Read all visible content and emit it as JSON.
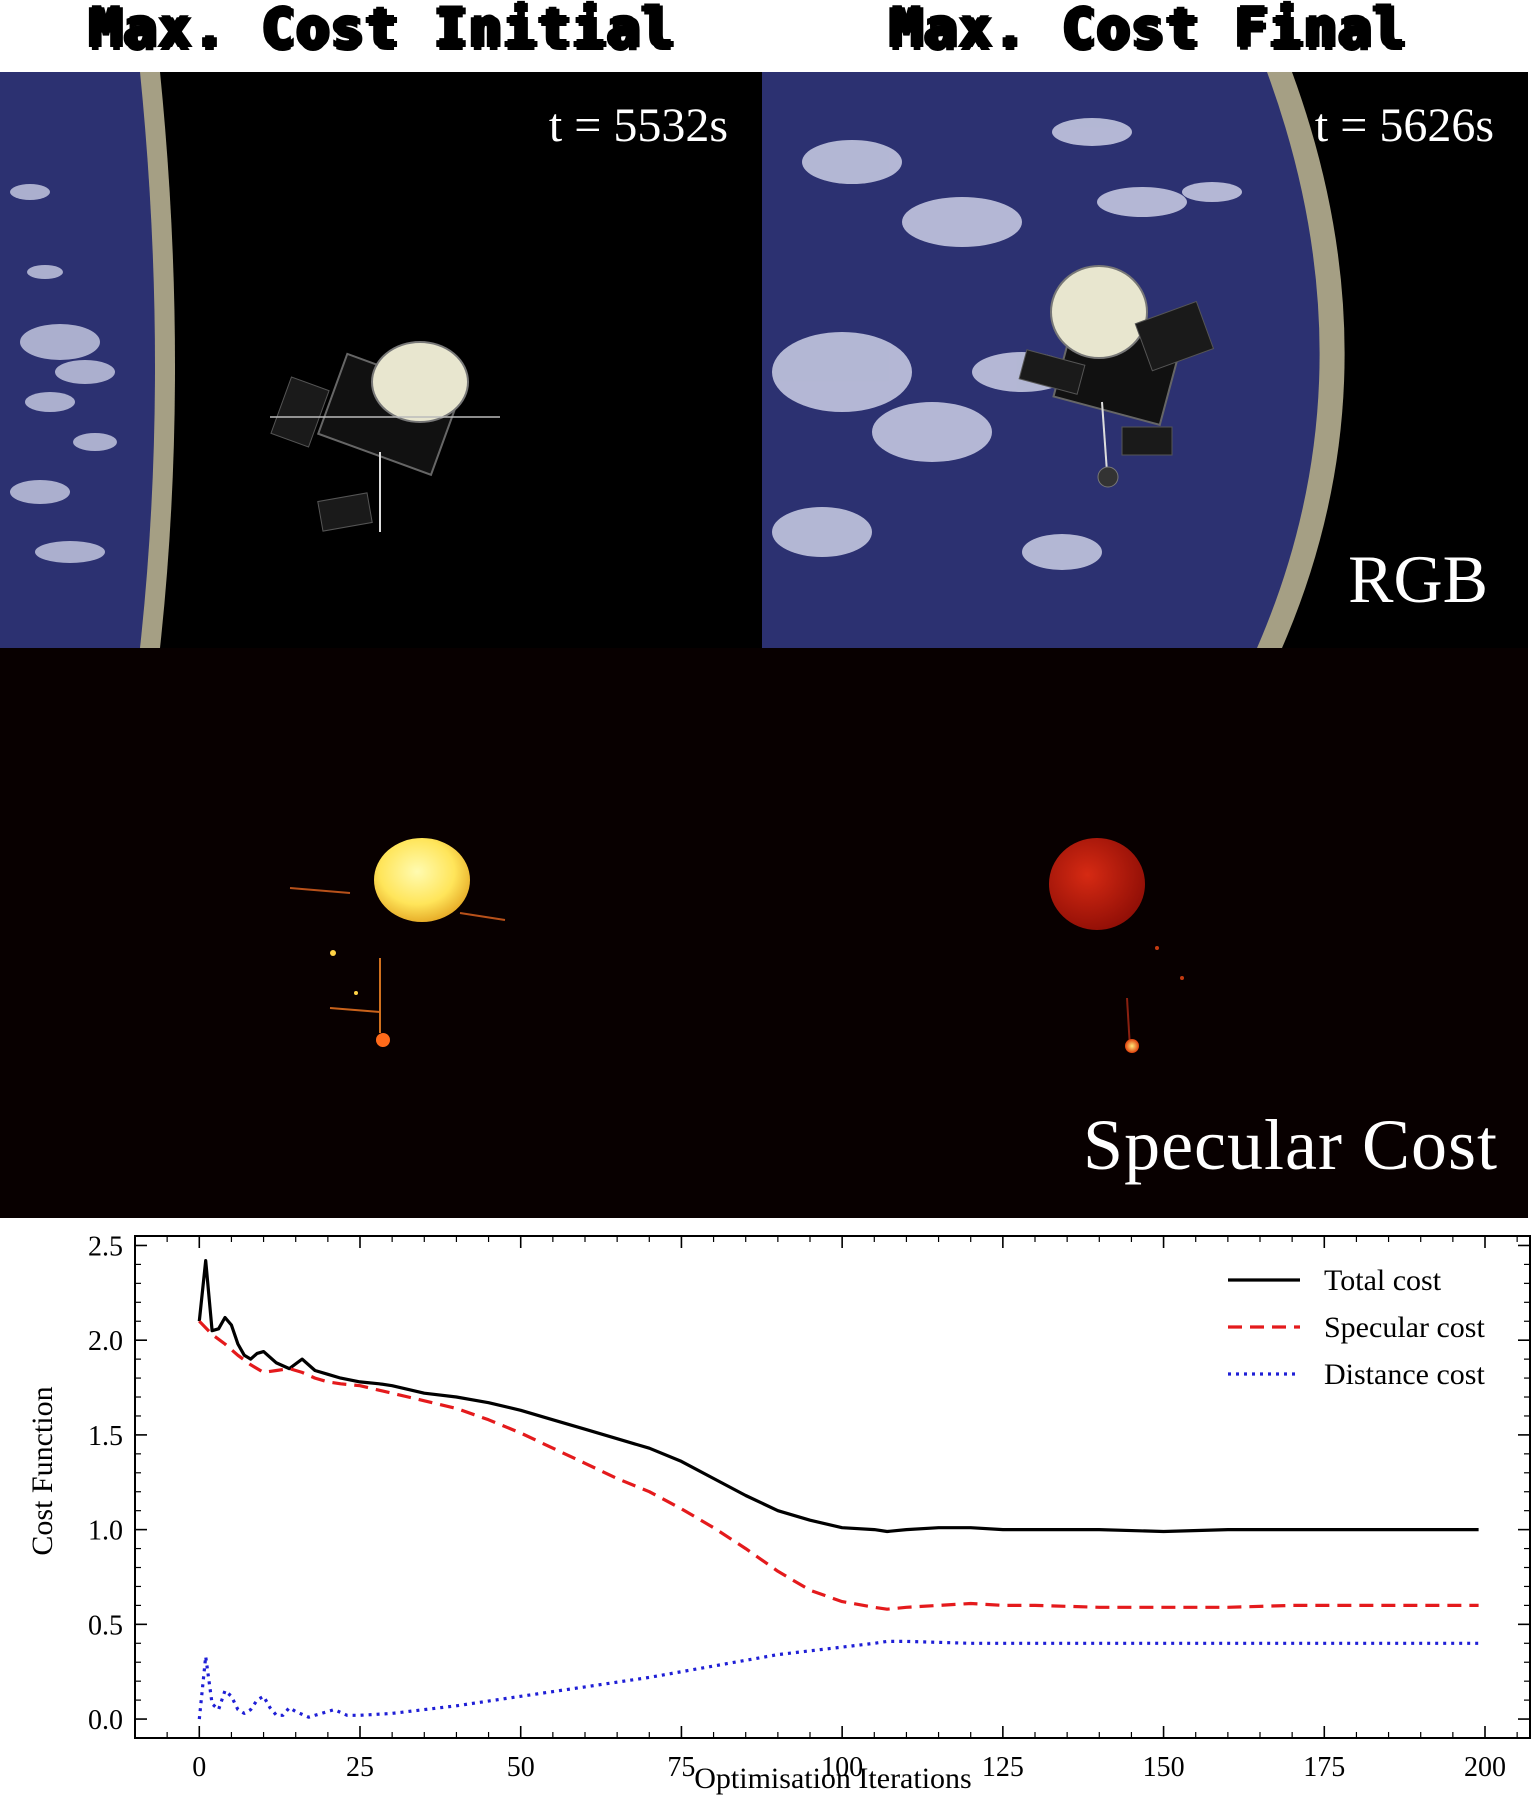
{
  "figure": {
    "col_titles": [
      "Max. Cost Initial",
      "Max. Cost Final"
    ],
    "panels": {
      "initial_time": "t = 5532s",
      "final_time": "t = 5626s",
      "rgb_label": "RGB",
      "specular_label": "Specular Cost"
    }
  },
  "colors": {
    "total": "#000000",
    "specular": "#e41a1c",
    "distance": "#1f1fd6",
    "space": "#000000",
    "earth": "#2a2f6e",
    "atmosphere": "#9c977e",
    "heat_hot": "#ffec5a",
    "heat_mid": "#c2180c"
  },
  "chart_data": {
    "type": "line",
    "xlabel": "Optimisation Iterations",
    "ylabel": "Cost Function",
    "xlim": [
      -10,
      207
    ],
    "ylim": [
      -0.1,
      2.55
    ],
    "xticks": [
      0,
      25,
      50,
      75,
      100,
      125,
      150,
      175,
      200
    ],
    "yticks": [
      0.0,
      0.5,
      1.0,
      1.5,
      2.0,
      2.5
    ],
    "xtick_labels": [
      "0",
      "25",
      "50",
      "75",
      "100",
      "125",
      "150",
      "175",
      "200"
    ],
    "ytick_labels": [
      "0.0",
      "0.5",
      "1.0",
      "1.5",
      "2.0",
      "2.5"
    ],
    "legend_position": "top-right",
    "series": [
      {
        "name": "Total cost",
        "style": "solid",
        "x": [
          0,
          1,
          2,
          3,
          4,
          5,
          6,
          7,
          8,
          9,
          10,
          12,
          14,
          16,
          18,
          20,
          22,
          25,
          28,
          30,
          35,
          40,
          45,
          50,
          55,
          60,
          65,
          70,
          75,
          80,
          85,
          90,
          95,
          100,
          105,
          107,
          110,
          115,
          120,
          125,
          130,
          140,
          150,
          160,
          170,
          180,
          190,
          199
        ],
        "y": [
          2.1,
          2.42,
          2.05,
          2.06,
          2.12,
          2.08,
          1.98,
          1.92,
          1.9,
          1.93,
          1.94,
          1.88,
          1.85,
          1.9,
          1.84,
          1.82,
          1.8,
          1.78,
          1.77,
          1.76,
          1.72,
          1.7,
          1.67,
          1.63,
          1.58,
          1.53,
          1.48,
          1.43,
          1.36,
          1.27,
          1.18,
          1.1,
          1.05,
          1.01,
          1.0,
          0.99,
          1.0,
          1.01,
          1.01,
          1.0,
          1.0,
          1.0,
          0.99,
          1.0,
          1.0,
          1.0,
          1.0,
          1.0
        ]
      },
      {
        "name": "Specular cost",
        "style": "dashed",
        "x": [
          0,
          2,
          4,
          6,
          8,
          10,
          12,
          14,
          16,
          18,
          20,
          22,
          25,
          30,
          35,
          40,
          45,
          50,
          55,
          60,
          65,
          70,
          75,
          80,
          85,
          90,
          95,
          100,
          105,
          107,
          110,
          115,
          120,
          125,
          130,
          140,
          150,
          160,
          170,
          180,
          190,
          199
        ],
        "y": [
          2.1,
          2.03,
          1.98,
          1.92,
          1.87,
          1.83,
          1.84,
          1.85,
          1.83,
          1.8,
          1.78,
          1.77,
          1.76,
          1.72,
          1.68,
          1.64,
          1.58,
          1.51,
          1.43,
          1.35,
          1.27,
          1.2,
          1.11,
          1.01,
          0.9,
          0.78,
          0.68,
          0.62,
          0.59,
          0.58,
          0.59,
          0.6,
          0.61,
          0.6,
          0.6,
          0.59,
          0.59,
          0.59,
          0.6,
          0.6,
          0.6,
          0.6
        ]
      },
      {
        "name": "Distance cost",
        "style": "dotted",
        "x": [
          0,
          1,
          2,
          3,
          4,
          5,
          6,
          7,
          8,
          9,
          10,
          11,
          12,
          13,
          14,
          15,
          17,
          19,
          21,
          23,
          25,
          30,
          35,
          40,
          50,
          60,
          70,
          80,
          90,
          100,
          105,
          107,
          110,
          120,
          130,
          140,
          150,
          160,
          170,
          180,
          190,
          199
        ],
        "y": [
          0.0,
          0.33,
          0.08,
          0.05,
          0.15,
          0.12,
          0.05,
          0.03,
          0.05,
          0.1,
          0.12,
          0.06,
          0.02,
          0.02,
          0.06,
          0.04,
          0.01,
          0.03,
          0.05,
          0.02,
          0.02,
          0.03,
          0.05,
          0.07,
          0.12,
          0.17,
          0.22,
          0.28,
          0.34,
          0.38,
          0.4,
          0.41,
          0.41,
          0.4,
          0.4,
          0.4,
          0.4,
          0.4,
          0.4,
          0.4,
          0.4,
          0.4
        ]
      }
    ]
  }
}
